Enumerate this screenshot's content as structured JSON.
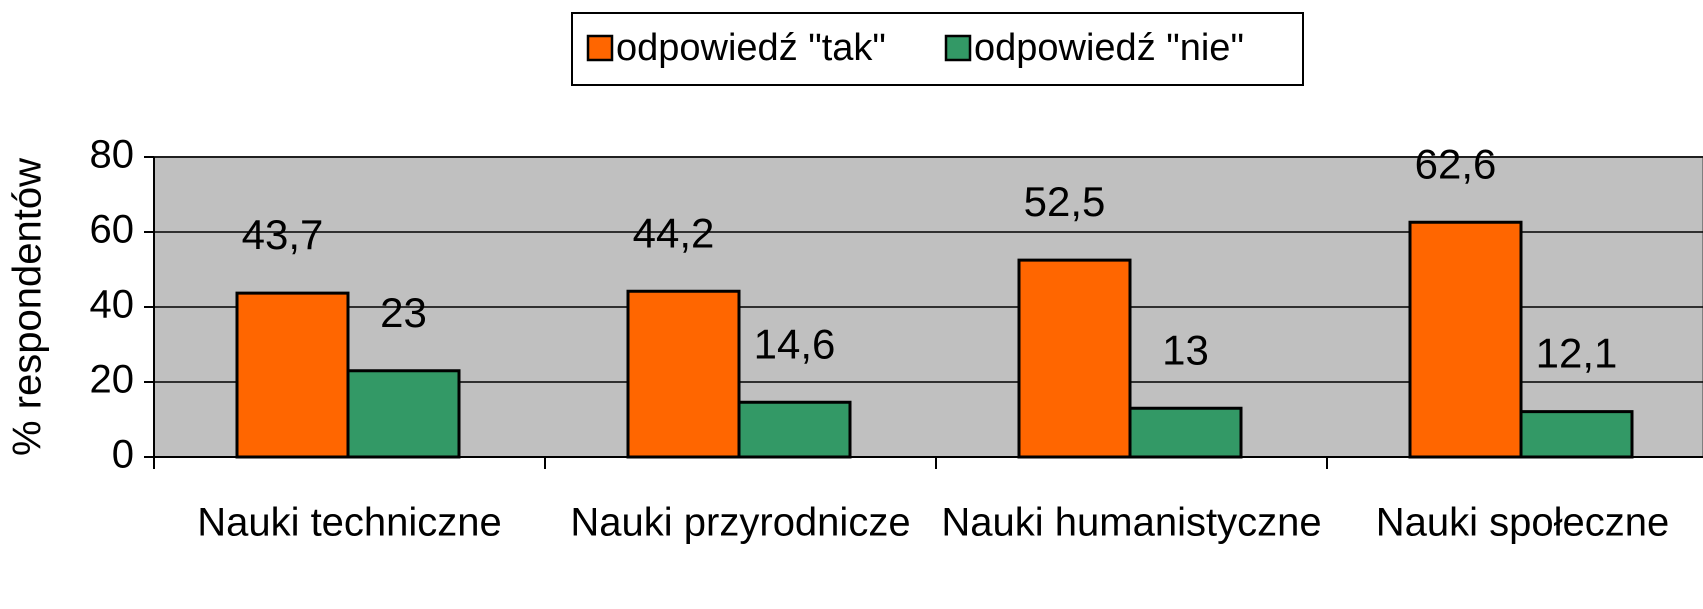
{
  "chart_data": {
    "type": "bar",
    "categories": [
      "Nauki techniczne",
      "Nauki przyrodnicze",
      "Nauki humanistyczne",
      "Nauki społeczne"
    ],
    "series": [
      {
        "name": "odpowiedź \"tak\"",
        "color": "#ff6600",
        "values": [
          43.7,
          44.2,
          52.5,
          62.6
        ],
        "value_labels": [
          "43,7",
          "44,2",
          "52,5",
          "62,6"
        ]
      },
      {
        "name": "odpowiedź \"nie\"",
        "color": "#339966",
        "values": [
          23,
          14.6,
          13,
          12.1
        ],
        "value_labels": [
          "23",
          "14,6",
          "13",
          "12,1"
        ]
      }
    ],
    "ylabel": "% respondentów",
    "ylim": [
      0,
      80
    ],
    "yticks": [
      0,
      20,
      40,
      60,
      80
    ],
    "grid": true,
    "legend": "top"
  }
}
